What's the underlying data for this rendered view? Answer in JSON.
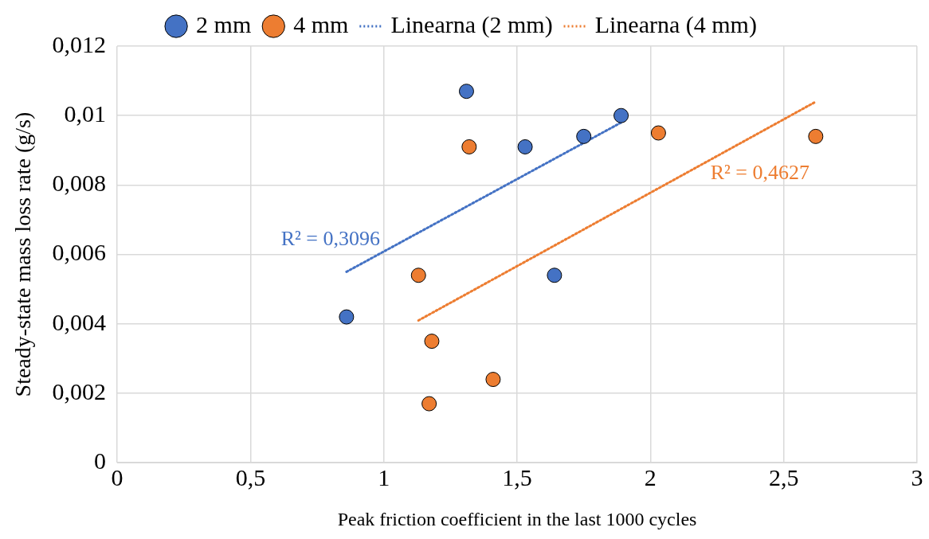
{
  "chart_data": {
    "type": "scatter",
    "xlabel": "Peak friction coefficient in the last 1000 cycles",
    "ylabel": "Steady-state mass loss rate (g/s)",
    "xlim": [
      0,
      3
    ],
    "ylim": [
      0,
      0.012
    ],
    "xticks": [
      0,
      {
        "value": 0.5,
        "label": "0,5"
      },
      1,
      {
        "value": 1.5,
        "label": "1,5"
      },
      2,
      {
        "value": 2.5,
        "label": "2,5"
      },
      3
    ],
    "yticks": [
      0,
      {
        "value": 0.002,
        "label": "0,002"
      },
      {
        "value": 0.004,
        "label": "0,004"
      },
      {
        "value": 0.006,
        "label": "0,006"
      },
      {
        "value": 0.008,
        "label": "0,008"
      },
      {
        "value": 0.01,
        "label": "0,01"
      },
      {
        "value": 0.012,
        "label": "0,012"
      }
    ],
    "grid": true,
    "legend": "top",
    "marker": "circle",
    "series": [
      {
        "name": "2 mm",
        "type": "scatter",
        "color": "#4472c4",
        "x": [
          0.86,
          1.31,
          1.53,
          1.64,
          1.75,
          1.89
        ],
        "values": [
          0.0042,
          0.0107,
          0.0091,
          0.0054,
          0.0094,
          0.01
        ]
      },
      {
        "name": "4 mm",
        "type": "scatter",
        "color": "#ed7d31",
        "x": [
          1.13,
          1.32,
          1.18,
          1.17,
          1.41,
          2.03,
          2.62
        ],
        "values": [
          0.0054,
          0.0091,
          0.0035,
          0.0017,
          0.0024,
          0.0095,
          0.0094
        ]
      },
      {
        "name": "Linearna (2 mm)",
        "type": "line",
        "line_style": "dotted",
        "marker": "none",
        "color": "#4472c4",
        "x": [
          0.86,
          1.89
        ],
        "values": [
          0.0055,
          0.0098
        ]
      },
      {
        "name": "Linearna (4 mm)",
        "type": "line",
        "line_style": "dotted",
        "marker": "none",
        "color": "#ed7d31",
        "x": [
          1.13,
          2.62
        ],
        "values": [
          0.0041,
          0.0104
        ]
      }
    ],
    "annotations": [
      "R² = 0,3096",
      "R² = 0,4627"
    ]
  }
}
